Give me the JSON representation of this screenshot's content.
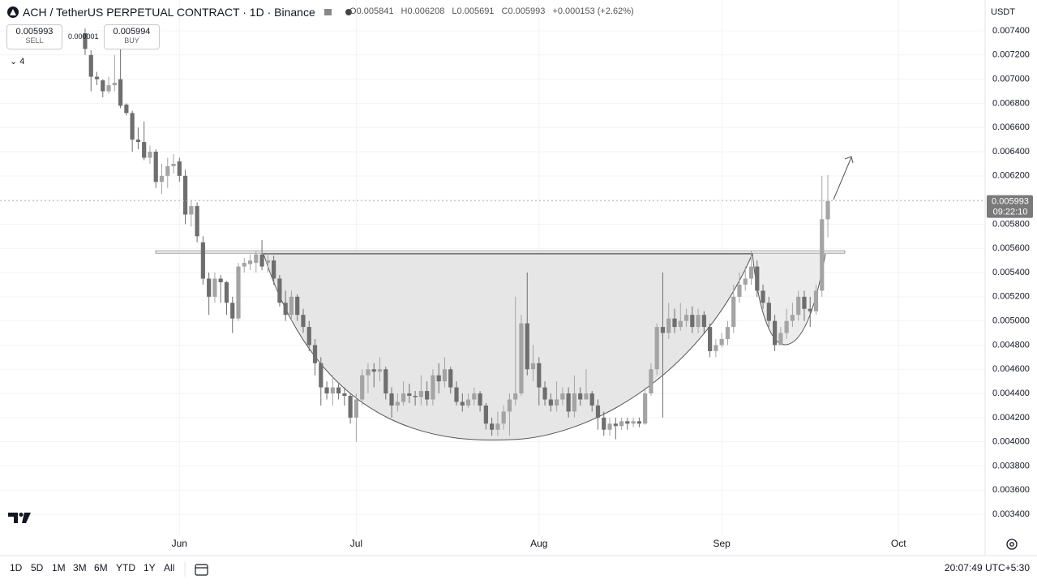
{
  "chart_data": {
    "type": "candlestick",
    "title": "ACH / TetherUS PERPETUAL CONTRACT · 1D · Binance",
    "ohlc_letters": [
      "O",
      "H",
      "L",
      "C"
    ],
    "change": "+0.000153 (+2.62%)",
    "open": [
      0.00738,
      0.0072,
      0.00702,
      0.00699,
      0.0069,
      0.00695,
      0.007,
      0.00679,
      0.00672,
      0.0065,
      0.00648,
      0.00635,
      0.0064,
      0.00615,
      0.0062,
      0.00628,
      0.00632,
      0.0062,
      0.00588,
      0.00595,
      0.00565,
      0.00535,
      0.0052,
      0.00535,
      0.00532,
      0.00515,
      0.00502,
      0.00545,
      0.00547,
      0.00548,
      0.00555,
      0.00548,
      0.0055,
      0.00535,
      0.00515,
      0.00505,
      0.0052,
      0.00505,
      0.00495,
      0.0048,
      0.00465,
      0.00445,
      0.0044,
      0.00445,
      0.0044,
      0.00438,
      0.0042,
      0.00435,
      0.00455,
      0.0046,
      0.00458,
      0.0046,
      0.0044,
      0.0043,
      0.00433,
      0.0044,
      0.00438,
      0.00437,
      0.00442,
      0.00435,
      0.00455,
      0.0045,
      0.0046,
      0.00445,
      0.00433,
      0.0043,
      0.00435,
      0.0044,
      0.0043,
      0.00415,
      0.0041,
      0.00415,
      0.00425,
      0.00435,
      0.0044,
      0.00498,
      0.0046,
      0.00465,
      0.00445,
      0.00435,
      0.0043,
      0.00435,
      0.0044,
      0.00425,
      0.0044,
      0.00435,
      0.0044,
      0.0043,
      0.0042,
      0.0041,
      0.00415,
      0.00413,
      0.00417,
      0.00415,
      0.00417,
      0.00415,
      0.0044,
      0.0046,
      0.00495,
      0.0049,
      0.00502,
      0.00495,
      0.005,
      0.00505,
      0.00495,
      0.00505,
      0.00495,
      0.00475,
      0.0048,
      0.00485,
      0.00495,
      0.0052,
      0.0053,
      0.00535,
      0.00545,
      0.00525,
      0.00515,
      0.005,
      0.0048,
      0.0049,
      0.005,
      0.00505,
      0.0052,
      0.0051,
      0.00508,
      0.00525,
      0.005841
    ],
    "high": [
      0.00742,
      0.00724,
      0.00706,
      0.007,
      0.00702,
      0.0072,
      0.00725,
      0.0068,
      0.00674,
      0.0066,
      0.00665,
      0.00645,
      0.00642,
      0.0063,
      0.00635,
      0.00638,
      0.00635,
      0.00625,
      0.006,
      0.00598,
      0.0057,
      0.0054,
      0.0054,
      0.00538,
      0.00533,
      0.0052,
      0.00548,
      0.00552,
      0.00555,
      0.00558,
      0.00567,
      0.00556,
      0.00554,
      0.00538,
      0.00525,
      0.00525,
      0.00522,
      0.0051,
      0.005,
      0.00485,
      0.0047,
      0.0045,
      0.00455,
      0.00448,
      0.00445,
      0.0044,
      0.0044,
      0.0046,
      0.00465,
      0.00465,
      0.0047,
      0.00462,
      0.00445,
      0.0044,
      0.0045,
      0.00448,
      0.00442,
      0.00455,
      0.0045,
      0.0046,
      0.00465,
      0.0047,
      0.00462,
      0.0045,
      0.0044,
      0.0044,
      0.00445,
      0.00442,
      0.00432,
      0.0042,
      0.00425,
      0.0043,
      0.0044,
      0.0052,
      0.00505,
      0.0054,
      0.0048,
      0.0047,
      0.0045,
      0.0044,
      0.0045,
      0.00445,
      0.00445,
      0.00455,
      0.00445,
      0.0046,
      0.00442,
      0.00435,
      0.00425,
      0.0042,
      0.0042,
      0.0042,
      0.0042,
      0.0042,
      0.0042,
      0.00445,
      0.00465,
      0.00498,
      0.0054,
      0.00515,
      0.0051,
      0.00515,
      0.0051,
      0.00512,
      0.0051,
      0.00508,
      0.00498,
      0.00485,
      0.0049,
      0.005,
      0.0053,
      0.0054,
      0.00545,
      0.00558,
      0.0055,
      0.0053,
      0.0052,
      0.00505,
      0.00495,
      0.0051,
      0.00515,
      0.00525,
      0.00525,
      0.0052,
      0.0053,
      0.0062,
      0.006208
    ],
    "low": [
      0.0072,
      0.0069,
      0.00695,
      0.00685,
      0.00688,
      0.0069,
      0.00676,
      0.0067,
      0.0064,
      0.00642,
      0.00633,
      0.0063,
      0.0061,
      0.00605,
      0.0061,
      0.00622,
      0.00615,
      0.0058,
      0.00578,
      0.00565,
      0.0053,
      0.00505,
      0.00515,
      0.00515,
      0.00505,
      0.0049,
      0.005,
      0.0054,
      0.00542,
      0.0054,
      0.00542,
      0.0054,
      0.0053,
      0.00512,
      0.005,
      0.005,
      0.005,
      0.0049,
      0.00475,
      0.00455,
      0.0043,
      0.00435,
      0.0043,
      0.00435,
      0.0043,
      0.00415,
      0.004,
      0.0043,
      0.0044,
      0.00445,
      0.0045,
      0.00435,
      0.0042,
      0.00425,
      0.0043,
      0.00432,
      0.0043,
      0.0043,
      0.0043,
      0.0043,
      0.0044,
      0.00445,
      0.0044,
      0.0043,
      0.00425,
      0.00428,
      0.0043,
      0.00425,
      0.0041,
      0.00405,
      0.00405,
      0.0041,
      0.00405,
      0.0043,
      0.00438,
      0.00455,
      0.0045,
      0.0043,
      0.0043,
      0.00425,
      0.00425,
      0.0043,
      0.0042,
      0.0042,
      0.0043,
      0.00435,
      0.00425,
      0.0041,
      0.00405,
      0.00405,
      0.00402,
      0.0041,
      0.0041,
      0.00412,
      0.00412,
      0.00414,
      0.00438,
      0.00455,
      0.0042,
      0.00485,
      0.0049,
      0.00492,
      0.00495,
      0.0049,
      0.0049,
      0.0049,
      0.0047,
      0.0047,
      0.00478,
      0.0048,
      0.0049,
      0.00515,
      0.00525,
      0.0053,
      0.0052,
      0.0051,
      0.00495,
      0.00475,
      0.0048,
      0.00485,
      0.00495,
      0.005,
      0.005,
      0.00495,
      0.00505,
      0.0052,
      0.005691
    ],
    "close": [
      0.00725,
      0.00702,
      0.007,
      0.0069,
      0.00695,
      0.00697,
      0.00678,
      0.00672,
      0.0065,
      0.00648,
      0.00635,
      0.0064,
      0.00615,
      0.0062,
      0.00628,
      0.0063,
      0.0062,
      0.00588,
      0.00595,
      0.0057,
      0.00535,
      0.0052,
      0.00535,
      0.00532,
      0.00515,
      0.00502,
      0.00545,
      0.00548,
      0.0055,
      0.00555,
      0.00545,
      0.0055,
      0.00535,
      0.00515,
      0.00505,
      0.0052,
      0.00505,
      0.00495,
      0.0048,
      0.00465,
      0.00445,
      0.0044,
      0.00445,
      0.0044,
      0.00438,
      0.0042,
      0.00435,
      0.00455,
      0.0046,
      0.00458,
      0.0046,
      0.0044,
      0.0043,
      0.00433,
      0.0044,
      0.00438,
      0.00437,
      0.00442,
      0.00435,
      0.00455,
      0.0045,
      0.0046,
      0.00445,
      0.00433,
      0.0043,
      0.00435,
      0.0044,
      0.0043,
      0.00415,
      0.0041,
      0.00415,
      0.00425,
      0.00435,
      0.0044,
      0.00498,
      0.0046,
      0.00465,
      0.00445,
      0.00435,
      0.0043,
      0.00435,
      0.0044,
      0.00425,
      0.0044,
      0.00435,
      0.0044,
      0.0043,
      0.0042,
      0.0041,
      0.00415,
      0.00413,
      0.00417,
      0.00415,
      0.00417,
      0.00415,
      0.0044,
      0.0046,
      0.00495,
      0.0049,
      0.00502,
      0.00495,
      0.005,
      0.00505,
      0.00495,
      0.00505,
      0.00495,
      0.00475,
      0.0048,
      0.00485,
      0.00495,
      0.0052,
      0.0053,
      0.00535,
      0.00545,
      0.00525,
      0.00515,
      0.005,
      0.0048,
      0.0049,
      0.005,
      0.00505,
      0.0052,
      0.0051,
      0.00508,
      0.00525,
      0.005841,
      0.005993
    ],
    "up_color": "#a4a4a4",
    "down_color": "#6e6e6e",
    "xlim": [
      -14.44,
      152.68
    ],
    "xticks": [
      {
        "value": 16,
        "label": "Jun"
      },
      {
        "value": 46,
        "label": "Jul"
      },
      {
        "value": 77,
        "label": "Aug"
      },
      {
        "value": 108,
        "label": "Sep"
      },
      {
        "value": 138,
        "label": "Oct"
      }
    ],
    "ylim": [
      0.003226,
      0.007655
    ],
    "yticks": [
      {
        "value": 0.0034,
        "label": "0.003400"
      },
      {
        "value": 0.0036,
        "label": "0.003600"
      },
      {
        "value": 0.0038,
        "label": "0.003800"
      },
      {
        "value": 0.004,
        "label": "0.004000"
      },
      {
        "value": 0.0042,
        "label": "0.004200"
      },
      {
        "value": 0.0044,
        "label": "0.004400"
      },
      {
        "value": 0.0046,
        "label": "0.004600"
      },
      {
        "value": 0.0048,
        "label": "0.004800"
      },
      {
        "value": 0.005,
        "label": "0.005000"
      },
      {
        "value": 0.0052,
        "label": "0.005200"
      },
      {
        "value": 0.0054,
        "label": "0.005400"
      },
      {
        "value": 0.0056,
        "label": "0.005600"
      },
      {
        "value": 0.0058,
        "label": "0.005800"
      },
      {
        "value": 0.006,
        "label": "0.006000"
      },
      {
        "value": 0.0062,
        "label": "0.006200"
      },
      {
        "value": 0.0064,
        "label": "0.006400"
      },
      {
        "value": 0.0066,
        "label": "0.006600"
      },
      {
        "value": 0.0068,
        "label": "0.006800"
      },
      {
        "value": 0.007,
        "label": "0.007000"
      },
      {
        "value": 0.0072,
        "label": "0.007200"
      },
      {
        "value": 0.0074,
        "label": "0.007400"
      }
    ],
    "grid": true,
    "currency": "USDT",
    "countdown": "09:22:10",
    "resistance": 0.00557
  },
  "trade_panel": {
    "sell_price": 0.005993,
    "sell_label": "SELL",
    "spread": 1e-06,
    "buy_price": 0.005994,
    "buy_label": "BUY"
  },
  "indicator_count": 4,
  "timeframes": [
    "1D",
    "5D",
    "1M",
    "3M",
    "6M",
    "YTD",
    "1Y",
    "All"
  ],
  "clock": "20:07:49 UTC+5:30"
}
